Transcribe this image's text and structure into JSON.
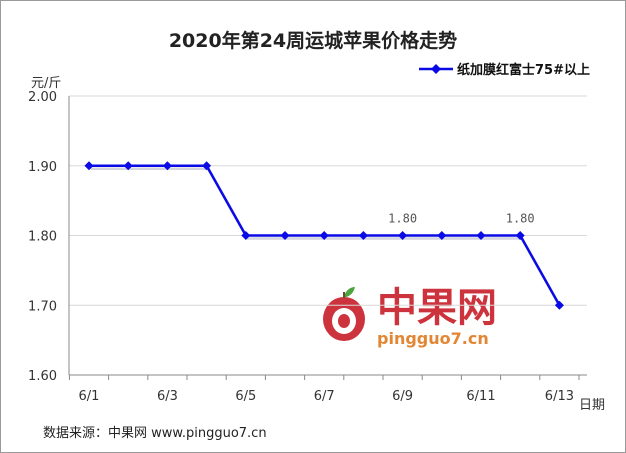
{
  "chart_data": {
    "type": "line",
    "title": "2020年第24周运城苹果价格走势",
    "ylabel": "元/斤",
    "xlabel": "日期",
    "ylim": [
      1.6,
      2.0
    ],
    "yticks": [
      "2.00",
      "1.90",
      "1.80",
      "1.70",
      "1.60"
    ],
    "ytick_values": [
      2.0,
      1.9,
      1.8,
      1.7,
      1.6
    ],
    "categories": [
      "6/1",
      "6/2",
      "6/3",
      "6/4",
      "6/5",
      "6/6",
      "6/7",
      "6/8",
      "6/9",
      "6/10",
      "6/11",
      "6/12",
      "6/13"
    ],
    "xtick_labels": [
      "6/1",
      "",
      "6/3",
      "",
      "6/5",
      "",
      "6/7",
      "",
      "6/9",
      "",
      "6/11",
      "",
      "6/13"
    ],
    "series": [
      {
        "name": "纸加膜红富士75#以上",
        "values": [
          1.9,
          1.9,
          1.9,
          1.9,
          1.8,
          1.8,
          1.8,
          1.8,
          1.8,
          1.8,
          1.8,
          1.8,
          1.7
        ],
        "data_labels": [
          "",
          "",
          "",
          "",
          "",
          "",
          "",
          "",
          "1.80",
          "",
          "",
          "1.80",
          ""
        ]
      }
    ],
    "legend_position": "top-right",
    "grid": true,
    "colors": {
      "line": "#0a0ae6",
      "marker": "#0a0ae6",
      "grid": "#d9d9d9",
      "axis": "#888888"
    }
  },
  "source": "数据来源：中果网 www.pingguo7.cn",
  "watermark": {
    "brand_cn": "中果网",
    "brand_url": "pingguo7.cn",
    "logo_icon": "apple-logo-icon"
  }
}
